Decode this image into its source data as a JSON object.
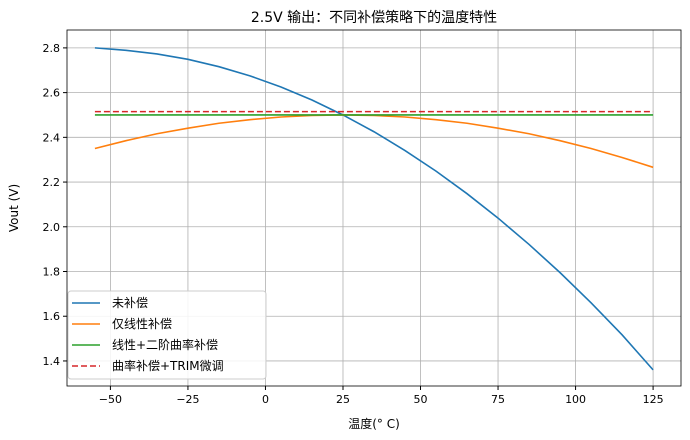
{
  "chart_data": {
    "type": "line",
    "title": "2.5V 输出：不同补偿策略下的温度特性",
    "xlabel": "温度(° C)",
    "ylabel": "Vout (V)",
    "xlim": [
      -64,
      134
    ],
    "ylim": [
      1.288,
      2.88
    ],
    "xticks": [
      -50,
      -25,
      0,
      25,
      50,
      75,
      100,
      125
    ],
    "yticks": [
      1.4,
      1.6,
      1.8,
      2.0,
      2.2,
      2.4,
      2.6,
      2.8
    ],
    "xtick_labels": [
      "−50",
      "−25",
      "0",
      "25",
      "50",
      "75",
      "100",
      "125"
    ],
    "ytick_labels": [
      "1.4",
      "1.6",
      "1.8",
      "2.0",
      "2.2",
      "2.4",
      "2.6",
      "2.8"
    ],
    "grid": true,
    "legend_position": "lower-left",
    "x": [
      -55,
      -45,
      -35,
      -25,
      -15,
      -5,
      5,
      15,
      25,
      35,
      45,
      55,
      65,
      75,
      85,
      95,
      105,
      115,
      125
    ],
    "series": [
      {
        "name": "未补偿",
        "color": "#1f77b4",
        "dash": false,
        "values": [
          2.8,
          2.789,
          2.773,
          2.749,
          2.716,
          2.675,
          2.625,
          2.567,
          2.5,
          2.425,
          2.341,
          2.249,
          2.148,
          2.039,
          1.921,
          1.795,
          1.66,
          1.517,
          1.36
        ]
      },
      {
        "name": "仅线性补偿",
        "color": "#ff7f0e",
        "dash": false,
        "values": [
          2.35,
          2.385,
          2.416,
          2.441,
          2.463,
          2.479,
          2.491,
          2.498,
          2.5,
          2.498,
          2.491,
          2.479,
          2.463,
          2.441,
          2.416,
          2.385,
          2.35,
          2.31,
          2.266
        ]
      },
      {
        "name": "线性+二阶曲率补偿",
        "color": "#2ca02c",
        "dash": false,
        "values": [
          2.5,
          2.5,
          2.5,
          2.5,
          2.5,
          2.5,
          2.5,
          2.5,
          2.5,
          2.5,
          2.5,
          2.5,
          2.5,
          2.5,
          2.5,
          2.5,
          2.5,
          2.5,
          2.5
        ]
      },
      {
        "name": "曲率补偿+TRIM微调",
        "color": "#d62728",
        "dash": true,
        "values": [
          2.515,
          2.515,
          2.515,
          2.515,
          2.515,
          2.515,
          2.515,
          2.515,
          2.515,
          2.515,
          2.515,
          2.515,
          2.515,
          2.515,
          2.515,
          2.515,
          2.515,
          2.515,
          2.515
        ]
      }
    ]
  }
}
